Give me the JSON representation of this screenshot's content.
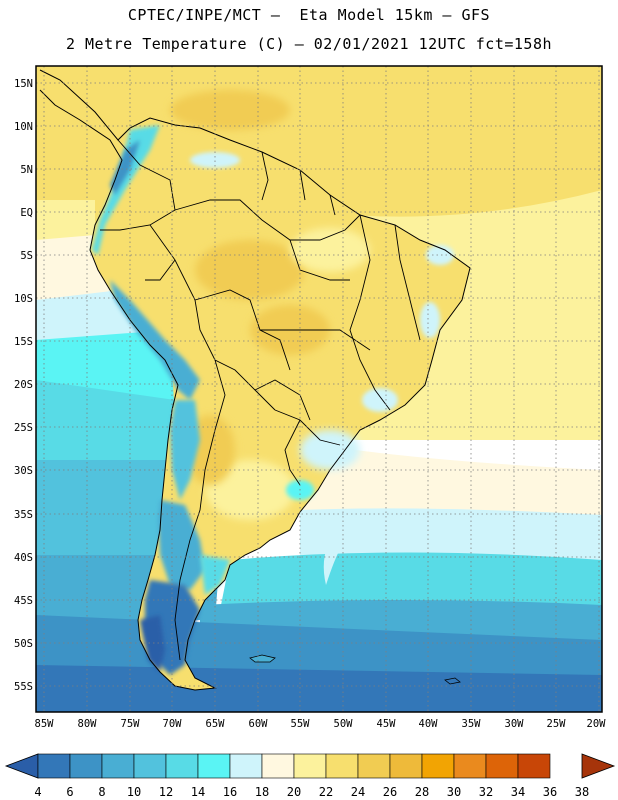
{
  "header": {
    "line1": "CPTEC/INPE/MCT –  Eta Model 15km – GFS",
    "line2": "2 Metre Temperature (C) – 02/01/2021 12UTC fct=158h"
  },
  "map": {
    "lat_labels": [
      "15N",
      "10N",
      "5N",
      "EQ",
      "5S",
      "10S",
      "15S",
      "20S",
      "25S",
      "30S",
      "35S",
      "40S",
      "45S",
      "50S",
      "55S"
    ],
    "lon_labels": [
      "85W",
      "80W",
      "75W",
      "70W",
      "65W",
      "60W",
      "55W",
      "50W",
      "45W",
      "40W",
      "35W",
      "30W",
      "25W",
      "20W"
    ],
    "lat_range": [
      -58,
      17
    ],
    "lon_range": [
      -85.5,
      -20
    ],
    "grid": "dotted"
  },
  "colorbar": {
    "levels": [
      "4",
      "6",
      "8",
      "10",
      "12",
      "14",
      "16",
      "18",
      "20",
      "22",
      "24",
      "26",
      "28",
      "30",
      "32",
      "34",
      "36",
      "38"
    ],
    "colors": [
      "#2a5ea8",
      "#3377b8",
      "#3d93c6",
      "#49aed3",
      "#52c2dd",
      "#58dbe6",
      "#5af4f4",
      "#cff4fb",
      "#fff8e0",
      "#fcf29d",
      "#f7df6e",
      "#f1cc52",
      "#eeba3a",
      "#f2a403",
      "#ea8a1e",
      "#dd6408",
      "#c84607",
      "#a6340a"
    ]
  }
}
